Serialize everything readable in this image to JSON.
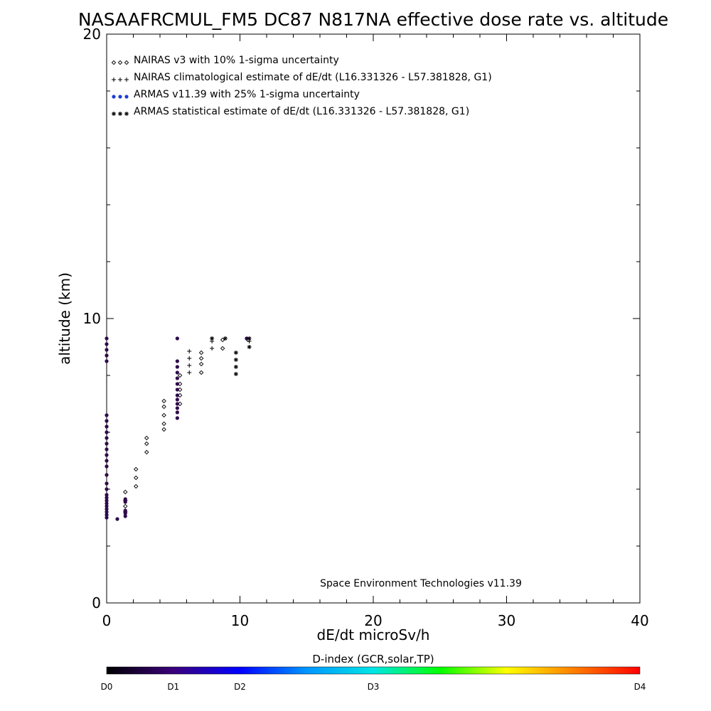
{
  "chart_data": {
    "type": "scatter",
    "title": "NASAAFRCMUL_FM5 DC87 N817NA effective dose rate vs. altitude",
    "xlabel": "dE/dt microSv/h",
    "ylabel": "altitude (km)",
    "xlim": [
      0,
      40
    ],
    "ylim": [
      0,
      20
    ],
    "x_ticks": [
      "0",
      "10",
      "20",
      "30",
      "40"
    ],
    "y_ticks": [
      "0",
      "10",
      "20"
    ],
    "grid": false,
    "legend_position": "top-left",
    "legend": [
      {
        "label": "NAIRAS v3 with 10% 1-sigma uncertainty",
        "symbol": "diamond",
        "color": "#000000"
      },
      {
        "label": "NAIRAS climatological estimate of dE/dt (L16.331326 - L57.381828, G1)",
        "symbol": "plus",
        "color": "#000000"
      },
      {
        "label": "ARMAS v11.39 with 25% 1-sigma uncertainty",
        "symbol": "filled-circle",
        "color": "#1c3fd1"
      },
      {
        "label": "ARMAS statistical estimate of dE/dt (L16.331326 - L57.381828, G1)",
        "symbol": "asterisk",
        "color": "#000000"
      }
    ],
    "annotation": "Space Environment Technologies v11.39",
    "colorbar": {
      "title": "D-index (GCR,solar,TP)",
      "labels": [
        "D0",
        "D1",
        "D2",
        "D3",
        "D4"
      ],
      "positions": [
        0,
        0.125,
        0.25,
        0.5,
        1.0
      ],
      "stops": [
        "#000000",
        "#3a007a",
        "#0000ff",
        "#0096ff",
        "#00e6e6",
        "#00ff00",
        "#ffff00",
        "#ff8000",
        "#ff0000"
      ]
    },
    "series": [
      {
        "name": "NAIRAS v3 with 10% 1-sigma uncertainty",
        "marker": "diamond",
        "color": "#000000",
        "points": [
          [
            1.4,
            3.2
          ],
          [
            1.4,
            3.4
          ],
          [
            1.4,
            3.6
          ],
          [
            1.4,
            3.9
          ],
          [
            2.2,
            4.1
          ],
          [
            2.2,
            4.4
          ],
          [
            2.2,
            4.7
          ],
          [
            3.0,
            5.3
          ],
          [
            3.0,
            5.6
          ],
          [
            3.0,
            5.8
          ],
          [
            4.3,
            6.1
          ],
          [
            4.3,
            6.3
          ],
          [
            4.3,
            6.6
          ],
          [
            4.3,
            6.9
          ],
          [
            4.3,
            7.1
          ],
          [
            5.5,
            7.0
          ],
          [
            5.5,
            7.3
          ],
          [
            5.5,
            7.5
          ],
          [
            5.5,
            7.7
          ],
          [
            5.5,
            8.0
          ],
          [
            7.1,
            8.1
          ],
          [
            7.1,
            8.4
          ],
          [
            7.1,
            8.6
          ],
          [
            7.1,
            8.8
          ],
          [
            8.7,
            8.95
          ],
          [
            8.7,
            9.25
          ],
          [
            10.6,
            9.25
          ]
        ]
      },
      {
        "name": "NAIRAS climatological estimate of dE/dt (L16.331326 - L57.381828, G1)",
        "marker": "plus",
        "color": "#000000",
        "points": [
          [
            6.2,
            8.1
          ],
          [
            6.2,
            8.35
          ],
          [
            6.2,
            8.6
          ],
          [
            6.2,
            8.85
          ],
          [
            7.9,
            8.95
          ],
          [
            7.9,
            9.2
          ],
          [
            10.7,
            9.2
          ]
        ]
      },
      {
        "name": "ARMAS v11.39 with 25% 1-sigma uncertainty",
        "marker": "filled-circle",
        "color": "#2e0b4a",
        "points": [
          [
            0,
            3.0
          ],
          [
            0,
            3.1
          ],
          [
            0,
            3.2
          ],
          [
            0,
            3.3
          ],
          [
            0,
            3.4
          ],
          [
            0,
            3.5
          ],
          [
            0,
            3.6
          ],
          [
            0,
            3.7
          ],
          [
            0,
            3.8
          ],
          [
            0,
            4.0
          ],
          [
            0,
            4.2
          ],
          [
            0,
            4.5
          ],
          [
            0,
            4.8
          ],
          [
            0,
            5.0
          ],
          [
            0,
            5.2
          ],
          [
            0,
            5.4
          ],
          [
            0,
            5.6
          ],
          [
            0,
            5.8
          ],
          [
            0,
            6.0
          ],
          [
            0,
            6.2
          ],
          [
            0,
            6.4
          ],
          [
            0,
            6.6
          ],
          [
            0,
            8.5
          ],
          [
            0,
            8.7
          ],
          [
            0,
            8.9
          ],
          [
            0,
            9.1
          ],
          [
            0,
            9.3
          ],
          [
            0.8,
            2.95
          ],
          [
            1.4,
            3.05
          ],
          [
            1.4,
            3.15
          ],
          [
            1.4,
            3.25
          ],
          [
            1.4,
            3.55
          ],
          [
            1.4,
            3.65
          ],
          [
            5.3,
            6.5
          ],
          [
            5.3,
            6.7
          ],
          [
            5.3,
            6.85
          ],
          [
            5.3,
            7.0
          ],
          [
            5.3,
            7.15
          ],
          [
            5.3,
            7.3
          ],
          [
            5.3,
            7.5
          ],
          [
            5.3,
            7.7
          ],
          [
            5.3,
            7.9
          ],
          [
            5.3,
            8.1
          ],
          [
            5.3,
            8.3
          ],
          [
            5.3,
            8.5
          ],
          [
            5.3,
            9.3
          ],
          [
            10.5,
            9.3
          ]
        ]
      },
      {
        "name": "ARMAS statistical estimate of dE/dt (L16.331326 - L57.381828, G1)",
        "marker": "asterisk",
        "color": "#000000",
        "points": [
          [
            9.7,
            8.05
          ],
          [
            9.7,
            8.3
          ],
          [
            9.7,
            8.55
          ],
          [
            9.7,
            8.8
          ],
          [
            8.9,
            9.3
          ],
          [
            7.9,
            9.3
          ],
          [
            10.7,
            9.0
          ],
          [
            10.7,
            9.3
          ]
        ]
      }
    ]
  }
}
